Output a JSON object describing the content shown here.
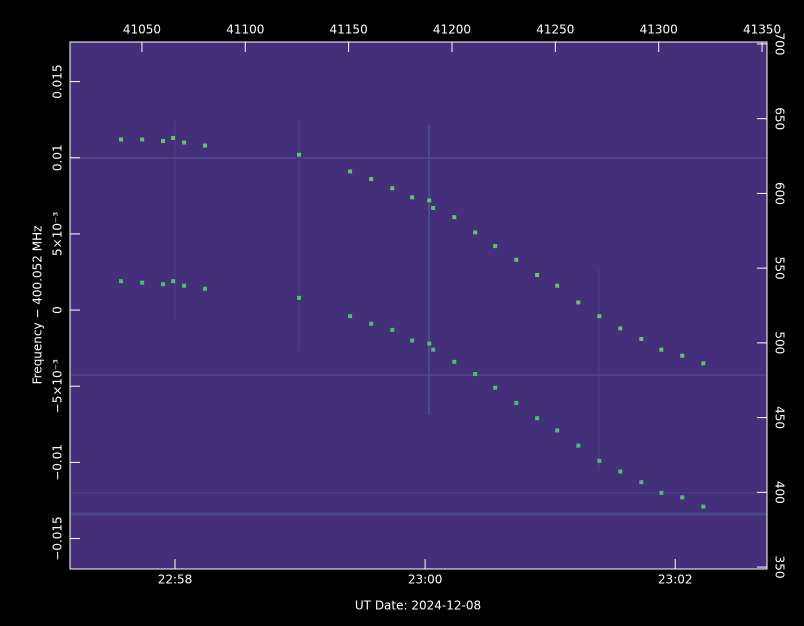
{
  "chart_data": {
    "type": "scatter",
    "xlabel": "UT Date: 2024-12-08",
    "ylabel": "Frequency − 400.052 MHz",
    "background": "#44307a",
    "xlim": [
      41015.2,
      41352.4
    ],
    "x2ticks": [
      41050,
      41100,
      41150,
      41200,
      41250,
      41300,
      41350
    ],
    "xticks": [
      {
        "value": 41066,
        "label": "22:58"
      },
      {
        "value": 41187,
        "label": "23:00"
      },
      {
        "value": 41308,
        "label": "23:02"
      }
    ],
    "ylim": [
      -0.017,
      0.0176
    ],
    "yticks": [
      {
        "value": 0.015,
        "label": "0.015"
      },
      {
        "value": 0.01,
        "label": "0.01"
      },
      {
        "value": 0.005,
        "label": "5×10⁻³"
      },
      0,
      {
        "value": -0.005,
        "label": "−5×10⁻³"
      },
      {
        "value": -0.01,
        "label": "−0.01"
      },
      {
        "value": -0.015,
        "label": "−0.015"
      }
    ],
    "y2lim": [
      348.7,
      701.3
    ],
    "y2ticks": [
      350,
      400,
      450,
      500,
      550,
      600,
      650,
      700
    ],
    "x": [
      41039.9,
      41050.1,
      41060.2,
      41065.1,
      41070.4,
      41080.5,
      41126.0,
      41150.7,
      41160.9,
      41171.1,
      41180.7,
      41189.0,
      41190.9,
      41201.1,
      41211.2,
      41220.9,
      41231.1,
      41241.2,
      41250.9,
      41261.1,
      41271.3,
      41281.4,
      41291.6,
      41301.3,
      41311.4,
      41321.6
    ],
    "series": [
      {
        "color": "#5ec962",
        "values": [
          0.0112,
          0.0112,
          0.0111,
          0.0113,
          0.011,
          0.0108,
          0.0102,
          0.0091,
          0.0086,
          0.008,
          0.0074,
          0.0072,
          0.0067,
          0.0061,
          0.0051,
          0.0042,
          0.0033,
          0.0023,
          0.0016,
          0.0005,
          -0.0004,
          -0.0012,
          -0.0019,
          -0.0026,
          -0.003,
          -0.0035
        ]
      },
      {
        "color": "#4ac16d",
        "values": [
          0.0019,
          0.0018,
          0.0017,
          0.0019,
          0.0016,
          0.0014,
          0.0008,
          -0.0004,
          -0.0009,
          -0.0013,
          -0.002,
          -0.0022,
          -0.0026,
          -0.0034,
          -0.0042,
          -0.0051,
          -0.0061,
          -0.0071,
          -0.0079,
          -0.0089,
          -0.0099,
          -0.0106,
          -0.0113,
          -0.012,
          -0.0123,
          -0.0129
        ]
      }
    ]
  }
}
